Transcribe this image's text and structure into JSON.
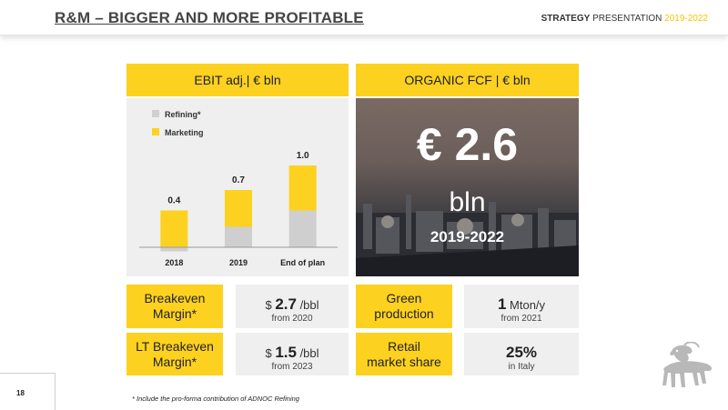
{
  "header": {
    "title": "R&M – BIGGER AND MORE PROFITABLE",
    "right_strong": "STRATEGY",
    "right_normal": " PRESENTATION ",
    "right_years": "2019-2022"
  },
  "left_panel": {
    "heading": "EBIT adj.| € bln"
  },
  "right_panel": {
    "heading": "ORGANIC FCF | € bln",
    "big_value": "€ 2.6",
    "unit": "bln",
    "period": "2019-2022"
  },
  "chart_data": {
    "type": "bar",
    "stacked": true,
    "categories": [
      "2018",
      "2019",
      "End of plan"
    ],
    "series": [
      {
        "name": "Refining*",
        "color": "#cfcfcf",
        "values": [
          -0.05,
          0.25,
          0.45
        ]
      },
      {
        "name": "Marketing",
        "color": "#fdd11f",
        "values": [
          0.45,
          0.45,
          0.55
        ]
      }
    ],
    "totals": [
      "0.4",
      "0.7",
      "1.0"
    ],
    "ylim": [
      -0.1,
      1.1
    ],
    "legend_position": "top-left"
  },
  "metrics": [
    {
      "label_line1": "Breakeven",
      "label_line2": "Margin*",
      "prefix": "$ ",
      "value": "2.7",
      "unit": " /bbl",
      "note": "from 2020"
    },
    {
      "label_line1": "LT Breakeven",
      "label_line2": "Margin*",
      "prefix": "$ ",
      "value": "1.5",
      "unit": " /bbl",
      "note": "from 2023"
    },
    {
      "label_line1": "Green",
      "label_line2": "production",
      "prefix": "",
      "value": "1",
      "unit": " Mton/y",
      "note": "from 2021"
    },
    {
      "label_line1": "Retail",
      "label_line2": "market share",
      "prefix": "",
      "value": "25%",
      "unit": "",
      "note": "in Italy"
    }
  ],
  "footer": {
    "page_number": "18",
    "footnote": "* Include the pro-forma contribution of ADNOC Refining"
  },
  "colors": {
    "accent_yellow": "#fdd11f",
    "panel_grey": "#efefef",
    "refining_grey": "#cfcfcf"
  },
  "icons": {
    "logo": "six-legged-dog-logo"
  }
}
